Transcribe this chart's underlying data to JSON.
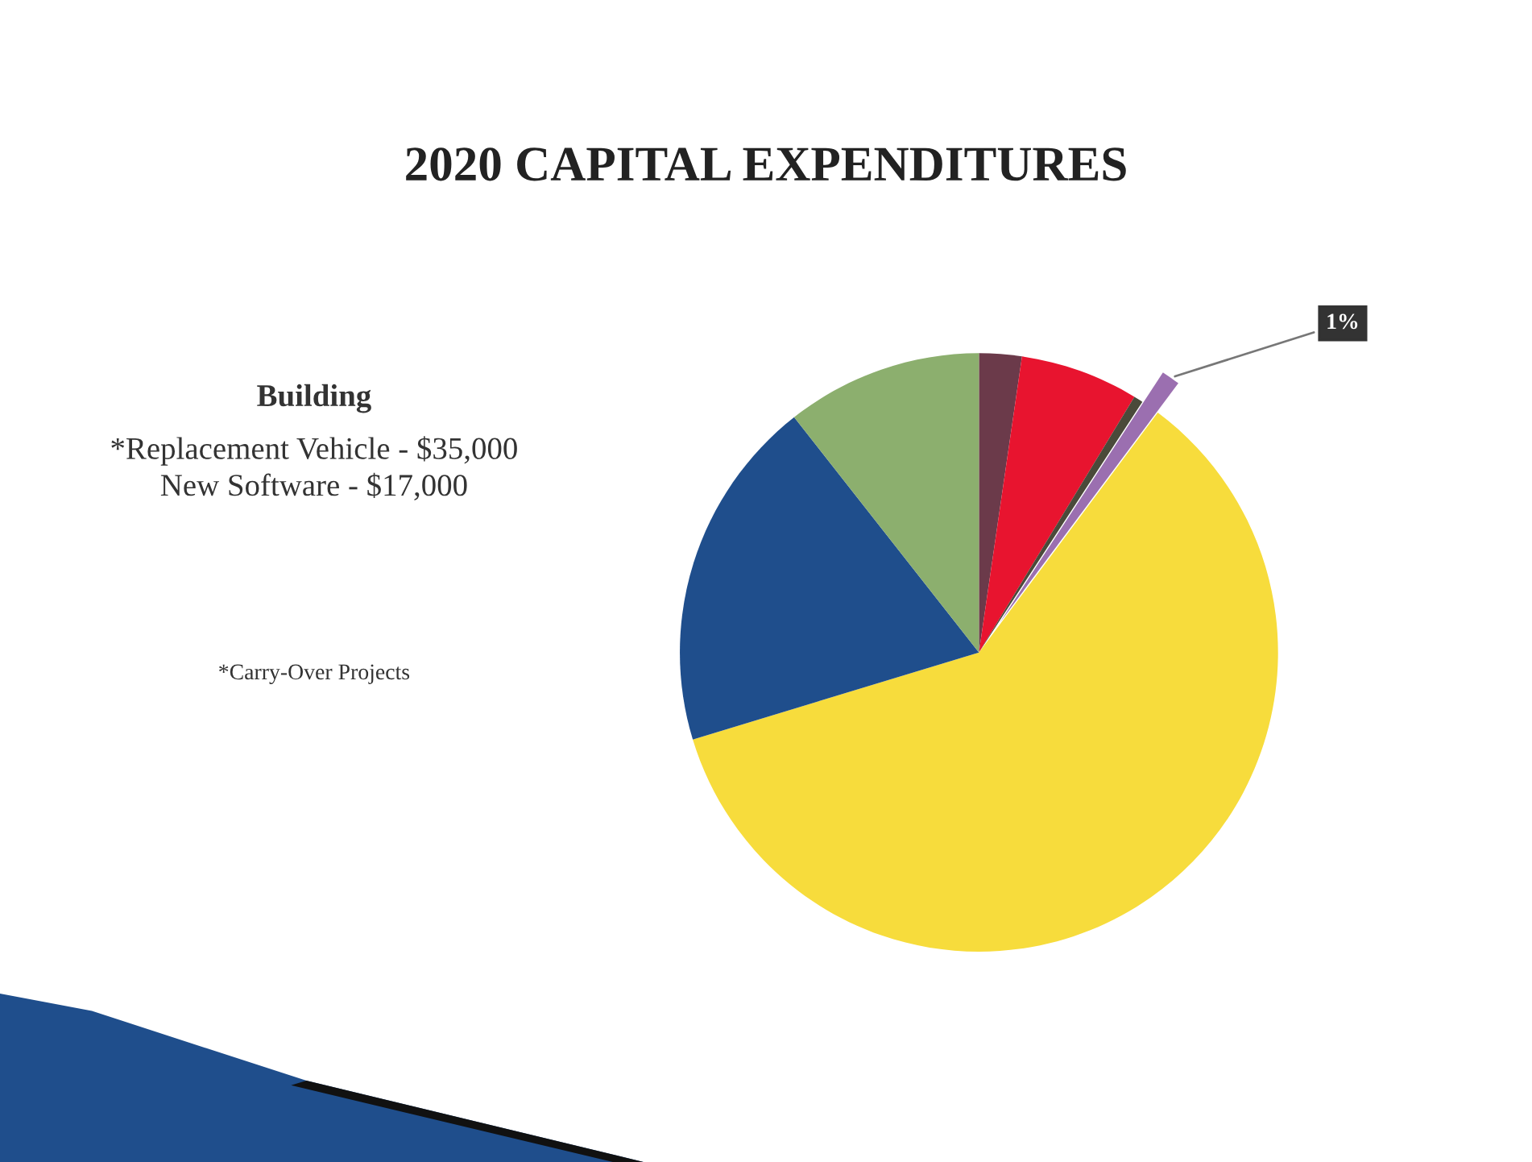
{
  "chart_data": {
    "type": "pie",
    "title": "2020 CAPITAL EXPENDITURES",
    "categories": [
      null,
      null,
      null,
      null,
      null,
      null,
      null
    ],
    "values": [
      2.3,
      6.4,
      0.5,
      1,
      60.1,
      19.1,
      10.6
    ],
    "colors": [
      "#6b3a4a",
      "#e8142f",
      "#4a4a3a",
      "#9b6fb0",
      "#f7dc3c",
      "#1f4e8c",
      "#8caf6e"
    ],
    "value_labels": [
      null,
      null,
      null,
      "1%",
      null,
      null,
      null
    ],
    "annotations": [
      "Building",
      "*Replacement Vehicle - $35,000",
      "New Software - $17,000",
      "*Carry-Over Projects"
    ]
  }
}
